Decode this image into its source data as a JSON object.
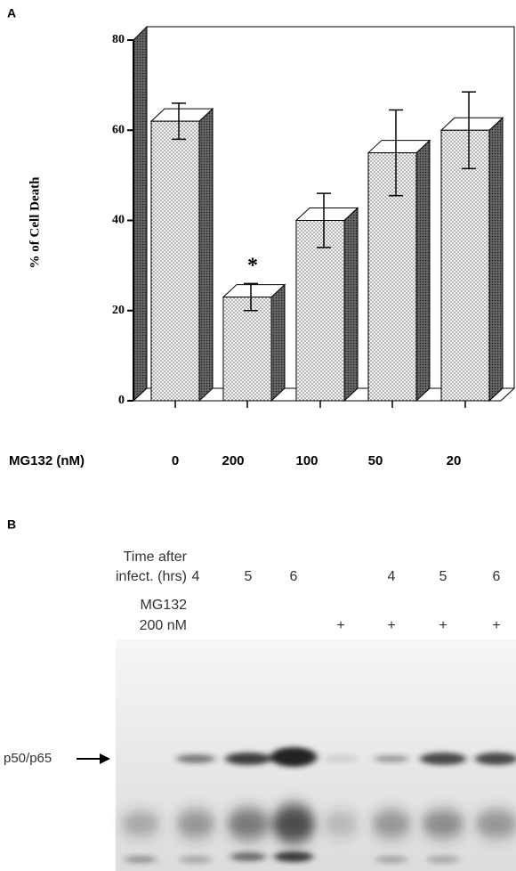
{
  "chart_data": {
    "type": "bar",
    "panel_label": "A",
    "y_label": "% of Cell Death",
    "x_label": "MG132 (nM)",
    "categories": [
      "0",
      "200",
      "100",
      "50",
      "20"
    ],
    "values": [
      62,
      23,
      40,
      55,
      60
    ],
    "errors": [
      4,
      3,
      6,
      9.5,
      8.5
    ],
    "annotation": "*",
    "ylim": [
      0,
      80
    ],
    "yticks": [
      0,
      20,
      40,
      60,
      80
    ]
  },
  "panel_b": {
    "label": "B",
    "time_label": [
      "Time after",
      "infect. (hrs)"
    ],
    "time_values": [
      "4",
      "5",
      "6",
      "4",
      "5",
      "6"
    ],
    "mg_label": [
      "MG132",
      "200 nM"
    ],
    "mg_marks": [
      "+",
      "+",
      "+",
      "+"
    ],
    "band_label": "p50/p65"
  }
}
